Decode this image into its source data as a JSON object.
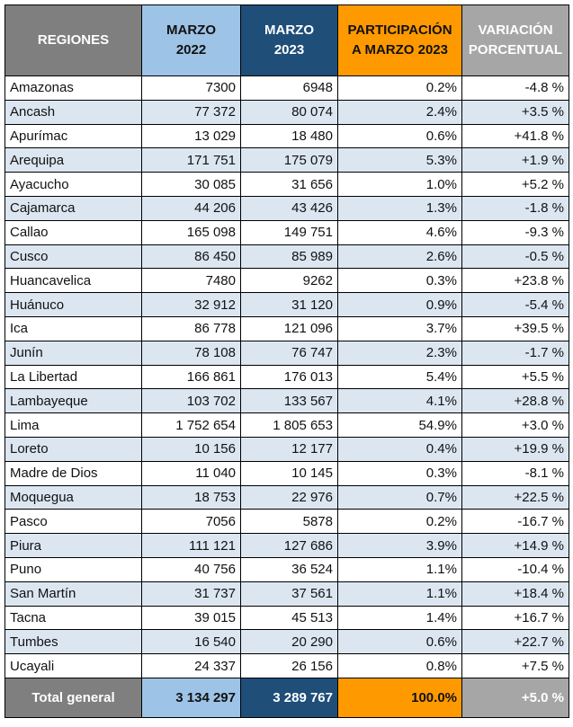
{
  "headers": {
    "regiones": "REGIONES",
    "marzo2022": [
      "MARZO",
      "2022"
    ],
    "marzo2023": [
      "MARZO",
      "2023"
    ],
    "participacion": [
      "PARTICIPACIÓN",
      "A MARZO 2023"
    ],
    "variacion": [
      "VARIACIÓN",
      "PORCENTUAL"
    ]
  },
  "rows": [
    [
      "Amazonas",
      "7300",
      "6948",
      "0.2%",
      "-4.8 %"
    ],
    [
      "Ancash",
      "77 372",
      "80 074",
      "2.4%",
      "+3.5 %"
    ],
    [
      "Apurímac",
      "13 029",
      "18 480",
      "0.6%",
      "+41.8 %"
    ],
    [
      "Arequipa",
      "171 751",
      "175 079",
      "5.3%",
      "+1.9 %"
    ],
    [
      "Ayacucho",
      "30 085",
      "31 656",
      "1.0%",
      "+5.2 %"
    ],
    [
      "Cajamarca",
      "44 206",
      "43 426",
      "1.3%",
      "-1.8 %"
    ],
    [
      "Callao",
      "165 098",
      "149 751",
      "4.6%",
      "-9.3 %"
    ],
    [
      "Cusco",
      "86 450",
      "85 989",
      "2.6%",
      "-0.5 %"
    ],
    [
      "Huancavelica",
      "7480",
      "9262",
      "0.3%",
      "+23.8 %"
    ],
    [
      "Huánuco",
      "32 912",
      "31 120",
      "0.9%",
      "-5.4 %"
    ],
    [
      "Ica",
      "86 778",
      "121 096",
      "3.7%",
      "+39.5 %"
    ],
    [
      "Junín",
      "78 108",
      "76 747",
      "2.3%",
      "-1.7 %"
    ],
    [
      "La Libertad",
      "166 861",
      "176 013",
      "5.4%",
      "+5.5 %"
    ],
    [
      "Lambayeque",
      "103 702",
      "133 567",
      "4.1%",
      "+28.8 %"
    ],
    [
      "Lima",
      "1 752 654",
      "1 805 653",
      "54.9%",
      "+3.0 %"
    ],
    [
      "Loreto",
      "10 156",
      "12 177",
      "0.4%",
      "+19.9 %"
    ],
    [
      "Madre de Dios",
      "11 040",
      "10 145",
      "0.3%",
      "-8.1 %"
    ],
    [
      "Moquegua",
      "18 753",
      "22 976",
      "0.7%",
      "+22.5 %"
    ],
    [
      "Pasco",
      "7056",
      "5878",
      "0.2%",
      "-16.7 %"
    ],
    [
      "Piura",
      "111 121",
      "127 686",
      "3.9%",
      "+14.9 %"
    ],
    [
      "Puno",
      "40 756",
      "36 524",
      "1.1%",
      "-10.4 %"
    ],
    [
      "San Martín",
      "31 737",
      "37 561",
      "1.1%",
      "+18.4 %"
    ],
    [
      "Tacna",
      "39 015",
      "45 513",
      "1.4%",
      "+16.7 %"
    ],
    [
      "Tumbes",
      "16 540",
      "20 290",
      "0.6%",
      "+22.7 %"
    ],
    [
      "Ucayali",
      "24 337",
      "26 156",
      "0.8%",
      "+7.5 %"
    ]
  ],
  "total": [
    "Total general",
    "3 134 297",
    "3 289 767",
    "100.0%",
    "+5.0 %"
  ],
  "colors": {
    "regiones_header": "#7f7f7f",
    "marzo2022_header": "#9dc3e6",
    "marzo2023_header": "#1f4e79",
    "participacion_header": "#ff9900",
    "variacion_header": "#a6a6a6",
    "alt_row": "#dce6f1"
  }
}
